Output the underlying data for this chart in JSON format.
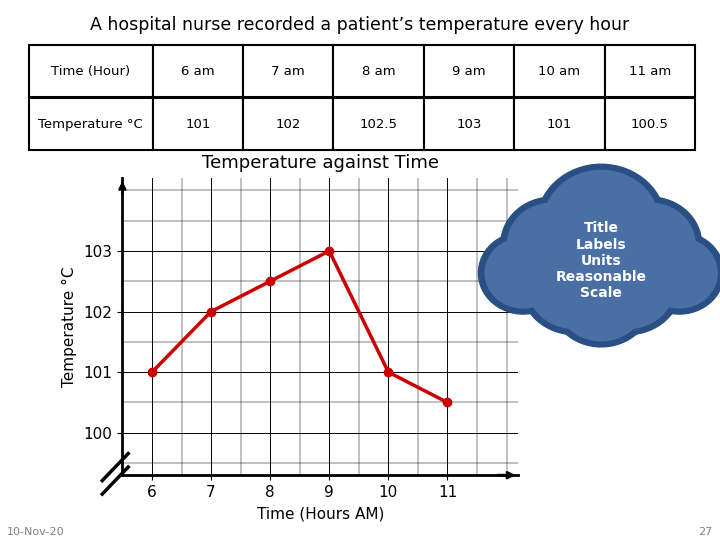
{
  "title": "A hospital nurse recorded a patient’s temperature every hour",
  "table_headers": [
    "Time (Hour)",
    "6 am",
    "7 am",
    "8 am",
    "9 am",
    "10 am",
    "11 am"
  ],
  "table_row_label": "Temperature °C",
  "table_values": [
    101,
    102,
    102.5,
    103,
    101,
    100.5
  ],
  "x_values": [
    6,
    7,
    8,
    9,
    10,
    11
  ],
  "y_values": [
    101,
    102,
    102.5,
    103,
    101,
    100.5
  ],
  "chart_title": "Temperature against Time",
  "xlabel": "Time (Hours AM)",
  "ylabel": "Temperature °C",
  "xlim": [
    5.5,
    12.2
  ],
  "ylim": [
    99.3,
    104.2
  ],
  "yticks": [
    100,
    101,
    102,
    103
  ],
  "xticks": [
    6,
    7,
    8,
    9,
    10,
    11
  ],
  "line_color": "#cc0000",
  "marker_color": "#cc0000",
  "grid_color": "#000000",
  "bg_color": "#ffffff",
  "cloud_color": "#4a6fa5",
  "cloud_border_color": "#2a4f85",
  "cloud_text": "Title\nLabels\nUnits\nReasonable\nScale",
  "footnote_left": "10-Nov-20",
  "footnote_right": "27"
}
